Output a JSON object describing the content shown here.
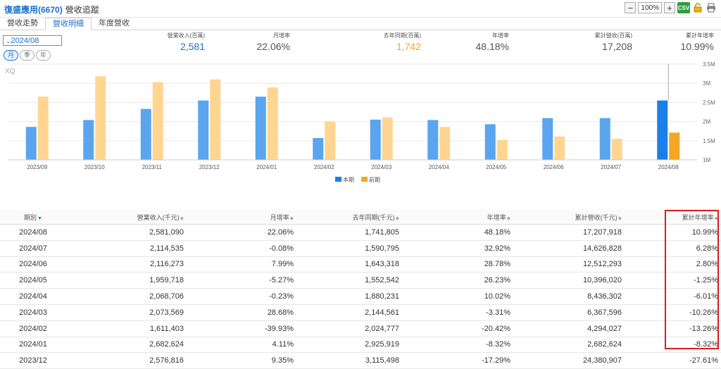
{
  "header": {
    "title": "復盛應用(6670)",
    "subtitle": "營收追蹤",
    "zoom": "100%",
    "csv_label": "CSV"
  },
  "tabs": [
    {
      "label": "營收走勢"
    },
    {
      "label": "營收明細"
    },
    {
      "label": "年度營收"
    }
  ],
  "period_select": {
    "value": "2024/08"
  },
  "period_buttons": [
    {
      "label": "月"
    },
    {
      "label": "季"
    },
    {
      "label": "年"
    }
  ],
  "summary": [
    {
      "label": "營業收入(百萬)",
      "value": "2,581",
      "color": "#1a6fd0"
    },
    {
      "label": "月增率",
      "value": "22.06%",
      "color": "#555555"
    },
    {
      "label": "去年同期(百萬)",
      "value": "1,742",
      "color": "#f5a623"
    },
    {
      "label": "年增率",
      "value": "48.18%",
      "color": "#555555"
    },
    {
      "label": "累計營收(百萬)",
      "value": "17,208",
      "color": "#555555"
    },
    {
      "label": "累計年增率",
      "value": "10.99%",
      "color": "#555555"
    }
  ],
  "chart_note": "XQ",
  "chart_data": {
    "type": "bar",
    "categories": [
      "2023/09",
      "2023/10",
      "2023/11",
      "2023/12",
      "2024/01",
      "2024/02",
      "2024/03",
      "2024/04",
      "2024/05",
      "2024/06",
      "2024/07",
      "2024/08"
    ],
    "series": [
      {
        "name": "本期",
        "values": [
          1.86,
          2.04,
          2.33,
          2.55,
          2.65,
          1.57,
          2.05,
          2.04,
          1.93,
          2.09,
          2.09,
          2.55
        ]
      },
      {
        "name": "前期",
        "values": [
          2.65,
          3.18,
          3.03,
          3.1,
          2.89,
          2.0,
          2.11,
          1.86,
          1.52,
          1.61,
          1.55,
          1.71
        ]
      }
    ],
    "y_ticks": [
      "3.5M",
      "3M",
      "2.5M",
      "2M",
      "1.5M",
      "1M"
    ],
    "ylim": [
      1,
      3.5
    ],
    "colors": {
      "current": "#5aa5ee",
      "current_highlight": "#1a7fe8",
      "previous": "#ffd591",
      "previous_highlight": "#f5a623"
    },
    "legend_position": "bottom"
  },
  "table": {
    "headers": [
      "期別",
      "營業收入(千元)",
      "月增率",
      "去年同期(千元)",
      "年增率",
      "累計營收(千元)",
      "累計年增率"
    ],
    "rows": [
      [
        "2024/08",
        "2,581,090",
        "22.06%",
        "1,741,805",
        "48.18%",
        "17,207,918",
        "10.99%"
      ],
      [
        "2024/07",
        "2,114,535",
        "-0.08%",
        "1,590,795",
        "32.92%",
        "14,626,828",
        "6.28%"
      ],
      [
        "2024/06",
        "2,116,273",
        "7.99%",
        "1,643,318",
        "28.78%",
        "12,512,293",
        "2.80%"
      ],
      [
        "2024/05",
        "1,959,718",
        "-5.27%",
        "1,552,542",
        "26.23%",
        "10,396,020",
        "-1.25%"
      ],
      [
        "2024/04",
        "2,068,706",
        "-0.23%",
        "1,880,231",
        "10.02%",
        "8,436,302",
        "-6.01%"
      ],
      [
        "2024/03",
        "2,073,569",
        "28.68%",
        "2,144,561",
        "-3.31%",
        "6,367,596",
        "-10.26%"
      ],
      [
        "2024/02",
        "1,611,403",
        "-39.93%",
        "2,024,777",
        "-20.42%",
        "4,294,027",
        "-13.26%"
      ],
      [
        "2024/01",
        "2,682,624",
        "4.11%",
        "2,925,919",
        "-8.32%",
        "2,682,624",
        "-8.32%"
      ],
      [
        "2023/12",
        "2,576,816",
        "9.35%",
        "3,115,498",
        "-17.29%",
        "24,380,907",
        "-27.61%"
      ]
    ]
  }
}
